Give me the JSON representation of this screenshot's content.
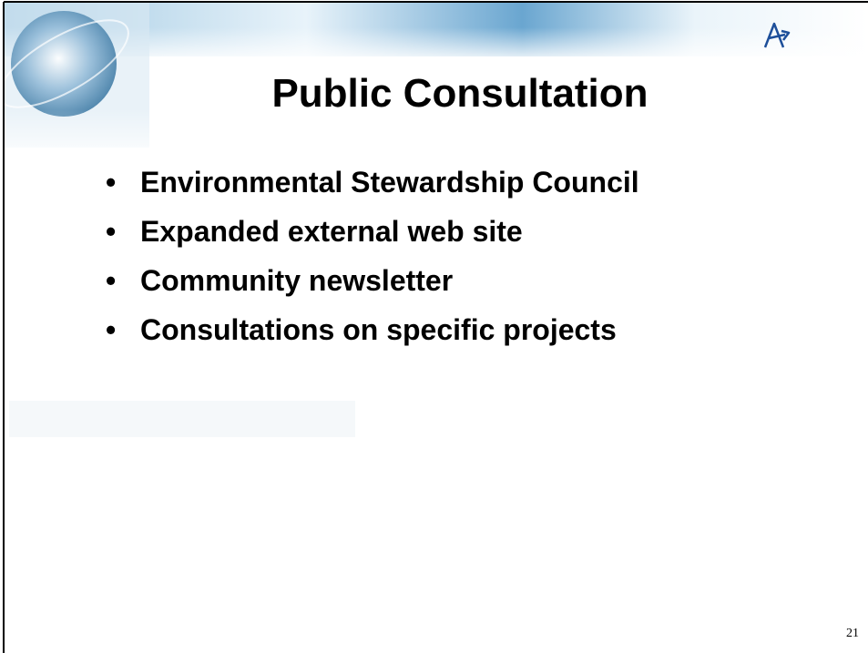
{
  "slide": {
    "title": "Public Consultation",
    "bullets": [
      "Environmental Stewardship Council",
      "Expanded external web site",
      "Community newsletter",
      "Consultations on specific projects"
    ],
    "page_number": "21"
  }
}
